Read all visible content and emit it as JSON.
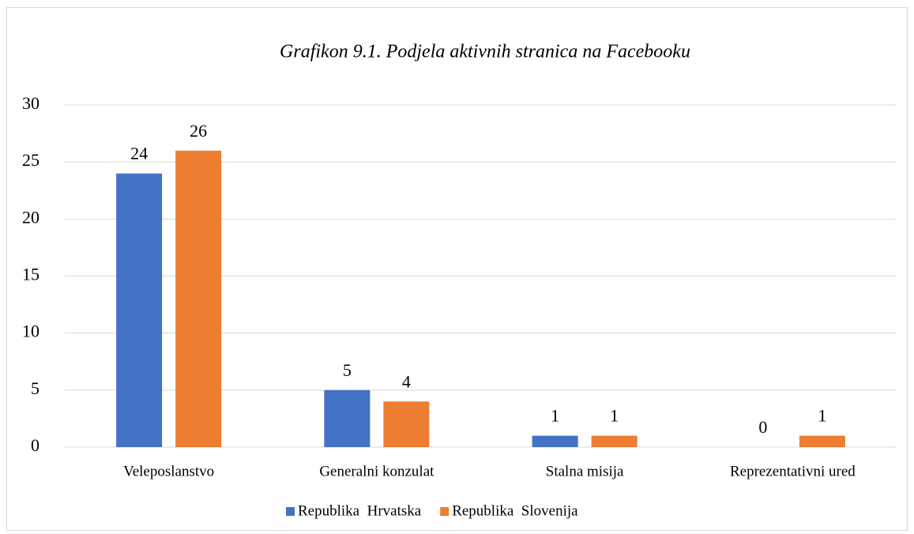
{
  "chart_data": {
    "type": "bar",
    "title": "Grafikon 9.1. Podjela aktivnih stranica na Facebooku",
    "categories": [
      "Veleposlanstvo",
      "Generalni  konzulat",
      "Stalna misija",
      "Reprezentativni  ured"
    ],
    "series": [
      {
        "name": "Republika  Hrvatska",
        "color": "#4472c4",
        "values": [
          24,
          5,
          1,
          0
        ]
      },
      {
        "name": "Republika  Slovenija",
        "color": "#ed7d31",
        "values": [
          26,
          4,
          1,
          1
        ]
      }
    ],
    "ylim": [
      0,
      30
    ],
    "yticks": [
      0,
      5,
      10,
      15,
      20,
      25,
      30
    ],
    "grid": true,
    "legend": "bottom"
  }
}
